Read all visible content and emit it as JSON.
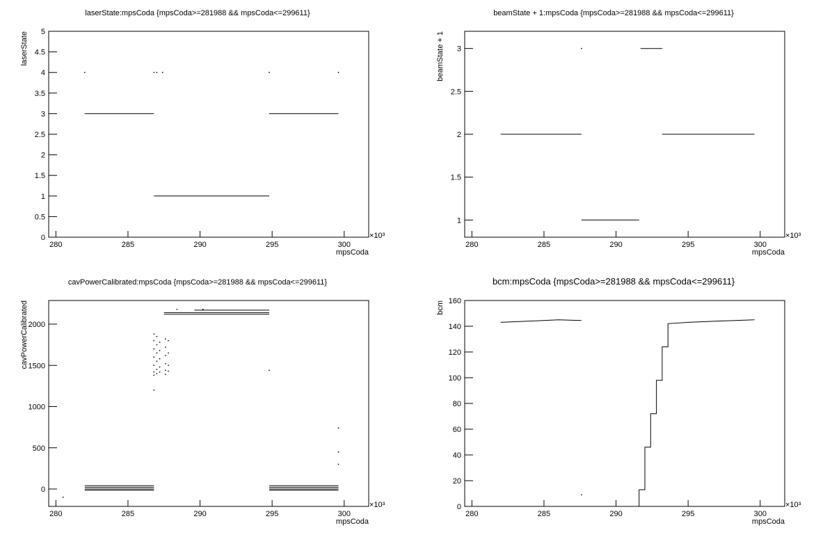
{
  "chart_data": [
    {
      "type": "scatter",
      "title": "laserState:mpsCoda {mpsCoda>=281988 && mpsCoda<=299611}",
      "x_label": "mpsCoda",
      "y_label": "laserState",
      "x_multiplier": "×10³",
      "xlim": [
        279.5,
        301.7
      ],
      "xticks": [
        280,
        285,
        290,
        295,
        300
      ],
      "ylim": [
        0,
        5
      ],
      "yticks": [
        0,
        0.5,
        1,
        1.5,
        2,
        2.5,
        3,
        3.5,
        4,
        4.5,
        5
      ],
      "segments": {
        "x": [
          282.0,
          286.8,
          null,
          286.8,
          294.8,
          null,
          294.8,
          299.6
        ],
        "values": [
          3,
          3,
          null,
          1,
          1,
          null,
          3,
          3
        ]
      },
      "points": {
        "x": [
          282.0,
          286.8,
          287.0,
          287.4,
          294.8,
          299.6
        ],
        "values": [
          4,
          4,
          4,
          4,
          4,
          4
        ]
      }
    },
    {
      "type": "scatter",
      "title": "beamState + 1:mpsCoda {mpsCoda>=281988 && mpsCoda<=299611}",
      "x_label": "mpsCoda",
      "y_label": "beamState + 1",
      "x_multiplier": "×10³",
      "xlim": [
        279.5,
        301.7
      ],
      "xticks": [
        280,
        285,
        290,
        295,
        300
      ],
      "ylim": [
        0.8,
        3.2
      ],
      "yticks": [
        1,
        1.5,
        2,
        2.5,
        3
      ],
      "segments": {
        "x": [
          282.0,
          287.6,
          null,
          287.6,
          291.6,
          null,
          291.7,
          293.2,
          null,
          293.2,
          299.6
        ],
        "values": [
          2,
          2,
          null,
          1,
          1,
          null,
          3,
          3,
          null,
          2,
          2
        ]
      },
      "points": {
        "x": [
          287.6
        ],
        "values": [
          3
        ]
      }
    },
    {
      "type": "scatter",
      "title": "cavPowerCalibrated:mpsCoda {mpsCoda>=281988 && mpsCoda<=299611}",
      "x_label": "mpsCoda",
      "y_label": "cavPowerCalibrated",
      "x_multiplier": "×10³",
      "xlim": [
        279.5,
        301.7
      ],
      "xticks": [
        280,
        285,
        290,
        295,
        300
      ],
      "ylim": [
        -211,
        2287
      ],
      "yticks": [
        0,
        500,
        1000,
        1500,
        2000
      ],
      "segments": {
        "x": [
          282.0,
          286.8,
          null,
          282.0,
          286.8,
          null,
          282.0,
          286.8,
          null,
          282.0,
          286.8,
          null,
          294.8,
          299.6,
          null,
          294.8,
          299.6,
          null,
          294.8,
          299.6,
          null,
          294.8,
          299.6,
          null,
          289.6,
          294.8,
          null,
          287.5,
          294.8,
          null,
          287.5,
          294.8
        ],
        "values": [
          40,
          40,
          null,
          20,
          20,
          null,
          0,
          0,
          null,
          -15,
          -15,
          null,
          40,
          40,
          null,
          20,
          20,
          null,
          0,
          0,
          null,
          -15,
          -15,
          null,
          2170,
          2170,
          null,
          2140,
          2140,
          null,
          2120,
          2120
        ]
      },
      "points": {
        "x": [
          286.8,
          286.8,
          286.8,
          286.8,
          286.8,
          286.8,
          286.8,
          287.0,
          287.0,
          287.0,
          287.0,
          287.0,
          287.0,
          287.2,
          287.2,
          287.2,
          287.2,
          287.2,
          287.6,
          287.6,
          287.6,
          287.6,
          287.6,
          287.6,
          287.8,
          287.8,
          287.8,
          287.8,
          286.8,
          294.8,
          299.6,
          299.6,
          299.6,
          280.5,
          288.4,
          290.2
        ],
        "values": [
          1380,
          1420,
          1500,
          1600,
          1700,
          1800,
          1880,
          1400,
          1450,
          1550,
          1650,
          1750,
          1850,
          1420,
          1480,
          1580,
          1680,
          1780,
          1390,
          1440,
          1520,
          1620,
          1720,
          1820,
          1430,
          1500,
          1650,
          1800,
          1200,
          1440,
          740,
          450,
          300,
          -100,
          2180,
          2180
        ]
      }
    },
    {
      "type": "scatter",
      "title": "bcm:mpsCoda {mpsCoda>=281988 && mpsCoda<=299611}",
      "x_label": "mpsCoda",
      "y_label": "bcm",
      "x_multiplier": "×10³",
      "xlim": [
        279.5,
        301.7
      ],
      "xticks": [
        280,
        285,
        290,
        295,
        300
      ],
      "ylim": [
        0,
        160
      ],
      "yticks": [
        0,
        20,
        40,
        60,
        80,
        100,
        120,
        140,
        160
      ],
      "segments": {
        "x": [
          282.0,
          284.0,
          286.0,
          287.6,
          null,
          291.6,
          291.6,
          292.0,
          292.0,
          292.4,
          292.4,
          292.8,
          292.8,
          293.2,
          293.2,
          293.6,
          293.6,
          295.0,
          297.0,
          299.6
        ],
        "values": [
          143,
          144,
          145,
          144.5,
          null,
          0,
          13,
          13,
          46,
          46,
          72,
          72,
          98,
          98,
          124,
          124,
          142,
          143,
          144,
          145
        ]
      },
      "points": {
        "x": [
          287.6
        ],
        "values": [
          9
        ]
      }
    }
  ]
}
